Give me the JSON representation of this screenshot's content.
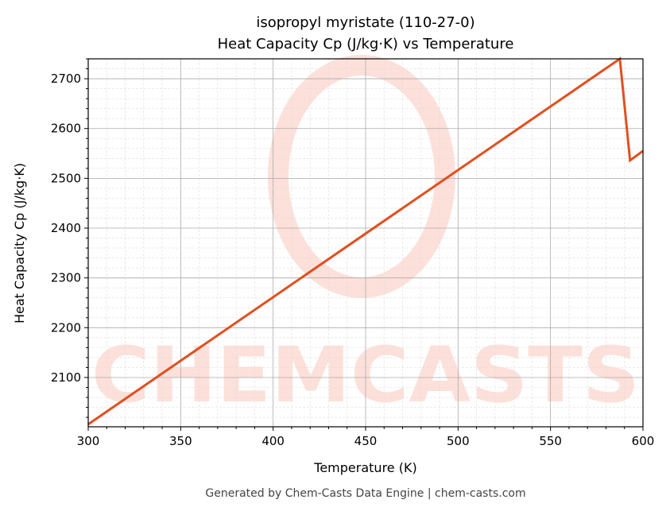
{
  "chart_data": {
    "type": "line",
    "title": "isopropyl myristate (110-27-0)",
    "subtitle": "Heat Capacity Cp (J/kg·K) vs Temperature",
    "xlabel": "Temperature (K)",
    "ylabel": "Heat Capacity Cp (J/kg·K)",
    "xlim": [
      300,
      600
    ],
    "ylim": [
      2001,
      2740
    ],
    "xticks": [
      300,
      350,
      400,
      450,
      500,
      550,
      600
    ],
    "yticks": [
      2100,
      2200,
      2300,
      2400,
      2500,
      2600,
      2700
    ],
    "grid": {
      "major": true,
      "minor": true
    },
    "series": [
      {
        "color": "#e05020",
        "x": [
          300,
          587.5,
          593,
          600
        ],
        "y": [
          2006,
          2740,
          2536,
          2555
        ]
      }
    ]
  },
  "watermark": {
    "text": "CHEMCASTS",
    "color": "#fde0da"
  },
  "footer": "Generated by Chem-Casts Data Engine | chem-casts.com"
}
